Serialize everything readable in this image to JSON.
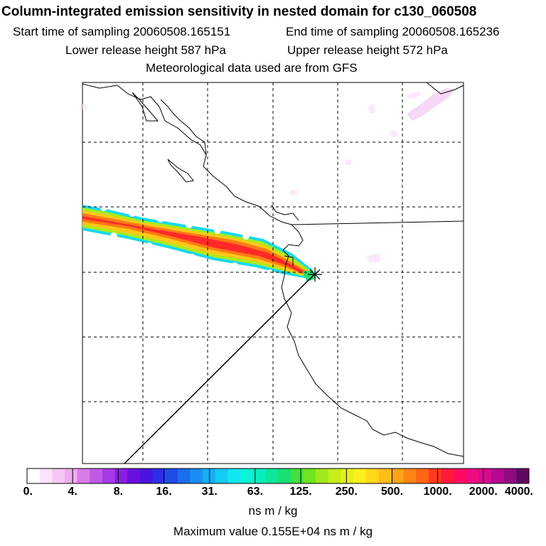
{
  "header": {
    "title": "Column-integrated emission sensitivity in nested domain for c130_060508",
    "start_label": "Start time of sampling 20060508.165151",
    "end_label": "End time of sampling 20060508.165236",
    "lower_label": "Lower release height  587 hPa",
    "upper_label": "Upper release height  572 hPa",
    "met_label": "Meteorological data used are from GFS"
  },
  "colorbar": {
    "ticks": [
      "0.",
      "4.",
      "8.",
      "16.",
      "31.",
      "63.",
      "125.",
      "250.",
      "500.",
      "1000.",
      "2000.",
      "4000."
    ],
    "colors": [
      "#ffffff",
      "#fbe3fb",
      "#f5c6f5",
      "#eeaaf0",
      "#d77be8",
      "#c05ae6",
      "#a63ae8",
      "#8a1ee6",
      "#6a10e0",
      "#4a14e0",
      "#2f2ee6",
      "#1e4ce8",
      "#1a6ef0",
      "#1a8ef4",
      "#18aef6",
      "#14ccf8",
      "#10e6f4",
      "#0cf2d8",
      "#08eebc",
      "#0ce69a",
      "#18e070",
      "#40e040",
      "#70e420",
      "#a0e81c",
      "#c8ec1c",
      "#e8f01c",
      "#fff01c",
      "#ffd81a",
      "#ffbe18",
      "#ffa216",
      "#ff8416",
      "#ff6618",
      "#ff3a20",
      "#ff1a3a",
      "#ff0a60",
      "#f00a80",
      "#d80a90",
      "#b80a90",
      "#900a80",
      "#600860"
    ],
    "unit": "ns m / kg"
  },
  "footer": {
    "max_value": "Maximum value  0.155E+04 ns m / kg"
  }
}
